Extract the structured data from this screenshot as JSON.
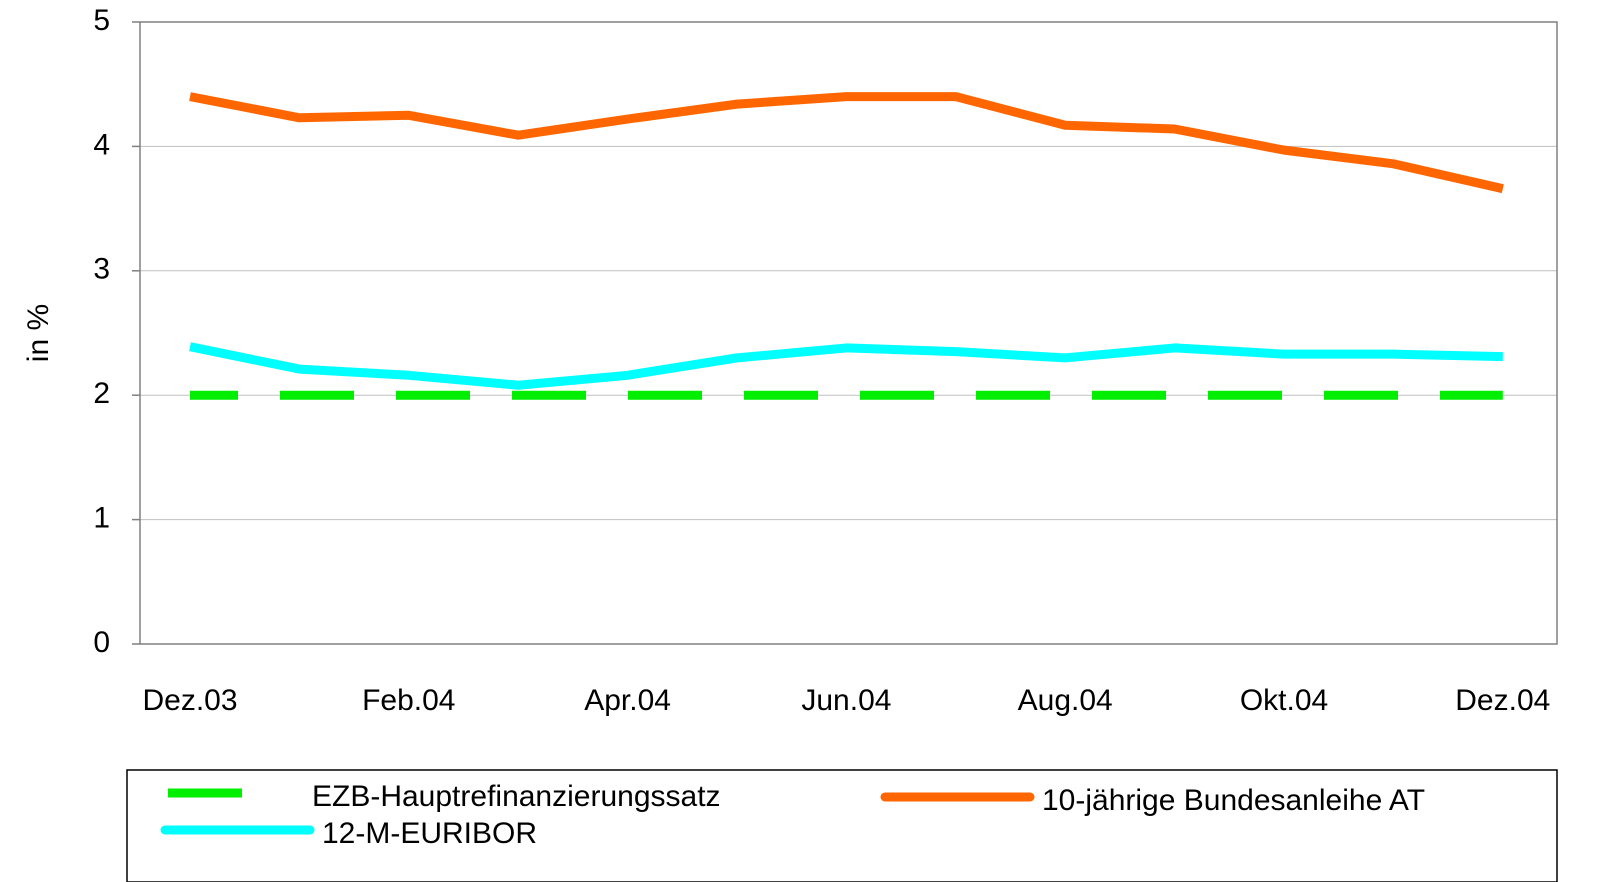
{
  "chart_data": {
    "type": "line",
    "y_label": "in %",
    "categories": [
      "Dez.03",
      null,
      "Feb.04",
      null,
      "Apr.04",
      null,
      "Jun.04",
      null,
      "Aug.04",
      null,
      "Okt.04",
      null,
      "Dez.04"
    ],
    "series": [
      {
        "name": "EZB-Hauptrefinanzierungssatz",
        "color": "#00ee00",
        "style": "dashed",
        "values": [
          2,
          2,
          2,
          2,
          2,
          2,
          2,
          2,
          2,
          2,
          2,
          2,
          2
        ]
      },
      {
        "name": "10-jährige Bundesanleihe AT",
        "color": "#ff6600",
        "style": "solid",
        "values": [
          4.4,
          4.23,
          4.25,
          4.09,
          4.22,
          4.34,
          4.4,
          4.4,
          4.17,
          4.14,
          3.97,
          3.86,
          3.66
        ]
      },
      {
        "name": "12-M-EURIBOR",
        "color": "#00ffff",
        "style": "solid",
        "values": [
          2.39,
          2.21,
          2.16,
          2.08,
          2.16,
          2.3,
          2.38,
          2.35,
          2.3,
          2.38,
          2.33,
          2.33,
          2.31
        ]
      }
    ],
    "ylim": [
      0,
      5
    ],
    "yticks": [
      0,
      1,
      2,
      3,
      4,
      5
    ],
    "grid": true
  }
}
